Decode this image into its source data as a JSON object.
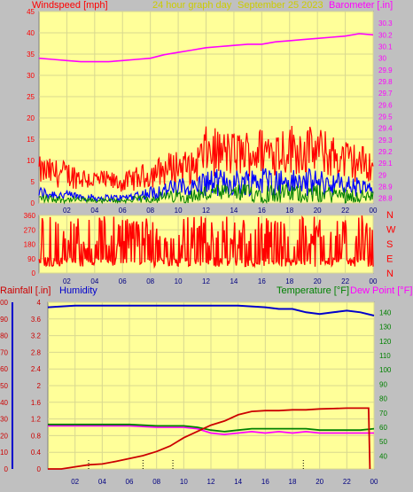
{
  "header": {
    "left_title": "Windspeed [mph]",
    "center_title": "24 hour graph day",
    "date": "September 25 2023",
    "right_title": "Barometer [.in]"
  },
  "colors": {
    "panel_bg": "#ffff99",
    "frame_bg": "#c0c0c0",
    "wind_gust": "#ff0000",
    "wind_avg": "#0000ff",
    "wind_low": "#008000",
    "barometer": "#ff00ff",
    "rain": "#cc0000",
    "humidity": "#0000cc",
    "temperature": "#008000",
    "dewpoint": "#ff00ff",
    "dir": "#ff0000"
  },
  "chart_data": [
    {
      "type": "line",
      "name": "wind",
      "xlabel": "",
      "x_ticks": [
        "02",
        "04",
        "06",
        "08",
        "10",
        "12",
        "14",
        "16",
        "18",
        "20",
        "22",
        "00"
      ],
      "y_left_label": "Windspeed [mph]",
      "y_left_ticks": [
        0,
        5,
        10,
        15,
        20,
        25,
        30,
        35,
        40,
        45
      ],
      "y_left_lim": [
        0,
        45
      ],
      "y_right_label": "Barometer [.in]",
      "y_right_ticks": [
        28.8,
        28.9,
        29,
        29.1,
        29.2,
        29.3,
        29.4,
        29.5,
        29.6,
        29.7,
        29.8,
        29.9,
        30,
        30.1,
        30.2,
        30.3
      ],
      "y_right_lim": [
        28.76,
        30.4
      ],
      "barometer": {
        "x": [
          0,
          1,
          2,
          3,
          4,
          5,
          6,
          7,
          8,
          9,
          10,
          11,
          12,
          13,
          14,
          15,
          16,
          17,
          18,
          19,
          20,
          21,
          22,
          23,
          24
        ],
        "values": [
          30.0,
          29.99,
          29.98,
          29.97,
          29.97,
          29.97,
          29.98,
          29.99,
          30.0,
          30.03,
          30.05,
          30.07,
          30.09,
          30.1,
          30.11,
          30.12,
          30.12,
          30.14,
          30.15,
          30.16,
          30.17,
          30.18,
          30.19,
          30.21,
          30.2
        ]
      },
      "gust_envelope": {
        "x": [
          0,
          2,
          4,
          6,
          8,
          10,
          11,
          12,
          14,
          16,
          18,
          20,
          22,
          23,
          24
        ],
        "values": [
          11,
          10,
          8,
          7,
          10,
          13,
          12,
          18,
          17,
          18,
          19,
          18,
          15,
          14,
          13
        ]
      },
      "avg_envelope": {
        "x": [
          0,
          2,
          4,
          6,
          8,
          10,
          11,
          12,
          14,
          16,
          18,
          20,
          22,
          23,
          24
        ],
        "values": [
          4,
          3,
          2,
          2,
          4,
          6,
          6,
          8,
          8,
          9,
          8,
          8,
          7,
          6,
          5
        ]
      }
    },
    {
      "type": "line",
      "name": "wind-direction",
      "x_ticks": [
        "02",
        "04",
        "06",
        "08",
        "10",
        "12",
        "14",
        "16",
        "18",
        "20",
        "22",
        "00"
      ],
      "y_ticks": [
        0,
        90,
        180,
        270,
        360
      ],
      "y_lim": [
        0,
        360
      ],
      "compass": [
        "N",
        "W",
        "S",
        "E",
        "N"
      ]
    },
    {
      "type": "line",
      "name": "rain-humidity-temp",
      "x_ticks": [
        "02",
        "04",
        "06",
        "08",
        "10",
        "12",
        "14",
        "16",
        "18",
        "20",
        "22",
        "00"
      ],
      "rain_label": "Rainfall [.in]",
      "humidity_label": "Humidity",
      "temp_label": "Temperature [°F]",
      "dew_label": "Dew Point [°F]",
      "rain_ticks": [
        0,
        0.4,
        0.8,
        1.2,
        1.6,
        2,
        2.4,
        2.8,
        3.2,
        3.6,
        4
      ],
      "rain_lim": [
        0,
        4
      ],
      "humidity_ticks": [
        0,
        10,
        20,
        30,
        40,
        50,
        60,
        70,
        80,
        90,
        100
      ],
      "humidity_lim": [
        0,
        100
      ],
      "temp_ticks": [
        40,
        50,
        60,
        70,
        80,
        90,
        100,
        110,
        120,
        130,
        140
      ],
      "temp_lim": [
        31,
        147
      ],
      "rain": {
        "x": [
          0,
          1,
          2,
          3,
          4,
          5,
          6,
          7,
          8,
          9,
          10,
          11,
          12,
          13,
          14,
          15,
          16,
          17,
          18,
          19,
          20,
          21,
          22,
          23,
          23.6,
          23.7
        ],
        "values": [
          0,
          0,
          0.05,
          0.1,
          0.12,
          0.18,
          0.25,
          0.32,
          0.42,
          0.55,
          0.75,
          0.9,
          1.05,
          1.15,
          1.3,
          1.38,
          1.4,
          1.4,
          1.42,
          1.42,
          1.44,
          1.45,
          1.46,
          1.46,
          1.46,
          0
        ]
      },
      "humidity": {
        "x": [
          0,
          2,
          4,
          6,
          8,
          10,
          12,
          14,
          16,
          17,
          18,
          19,
          20,
          21,
          22,
          23,
          24
        ],
        "values": [
          97,
          98,
          98,
          98,
          98,
          98,
          98,
          98,
          97,
          96,
          96,
          94,
          93,
          94,
          95,
          94,
          92
        ]
      },
      "temperature": {
        "x": [
          0,
          2,
          4,
          6,
          8,
          10,
          11,
          12,
          13,
          14,
          15,
          16,
          17,
          18,
          19,
          20,
          21,
          22,
          23,
          24
        ],
        "values": [
          62,
          62,
          62,
          62,
          61,
          61,
          60,
          58,
          57,
          58,
          59,
          59,
          59,
          59,
          59,
          58,
          58,
          58,
          58,
          59
        ]
      },
      "dewpoint": {
        "x": [
          0,
          2,
          4,
          6,
          8,
          10,
          11,
          12,
          13,
          14,
          15,
          16,
          17,
          18,
          19,
          20,
          21,
          22,
          23,
          24
        ],
        "values": [
          61,
          61,
          61,
          61,
          60,
          60,
          59,
          56,
          55,
          56,
          57,
          56,
          57,
          56,
          57,
          56,
          56,
          56,
          56,
          56
        ]
      },
      "marks_x": [
        3,
        7,
        9.2,
        18.8
      ]
    }
  ]
}
